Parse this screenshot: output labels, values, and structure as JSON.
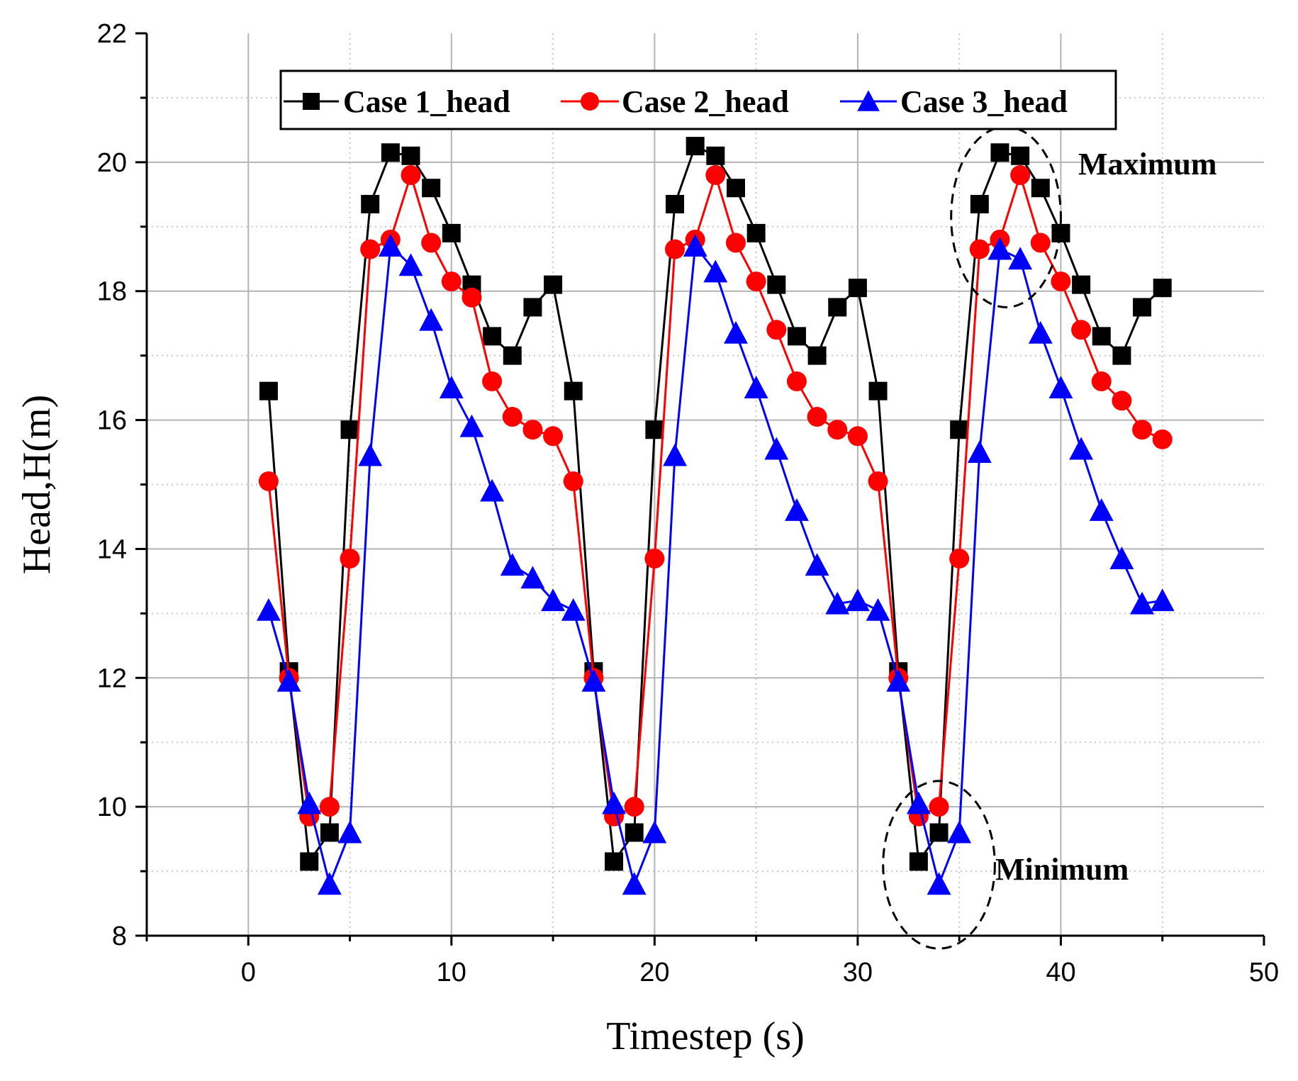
{
  "chart_data": {
    "type": "line",
    "title": "",
    "xlabel": "Timestep (s)",
    "ylabel": "Head,H(m)",
    "xlim": [
      -5,
      50
    ],
    "ylim": [
      8,
      22
    ],
    "xticks": [
      0,
      10,
      20,
      30,
      40,
      50
    ],
    "yticks": [
      8,
      10,
      12,
      14,
      16,
      18,
      20,
      22
    ],
    "grid": true,
    "legend_position": "top",
    "x": [
      1,
      2,
      3,
      4,
      5,
      6,
      7,
      8,
      9,
      10,
      11,
      12,
      13,
      14,
      15,
      16,
      17,
      18,
      19,
      20,
      21,
      22,
      23,
      24,
      25,
      26,
      27,
      28,
      29,
      30,
      31,
      32,
      33,
      34,
      35,
      36,
      37,
      38,
      39,
      40,
      41,
      42,
      43,
      44,
      45
    ],
    "series": [
      {
        "name": "Case 1_head",
        "color": "#000000",
        "marker": "square",
        "values": [
          16.45,
          12.1,
          9.15,
          9.6,
          15.85,
          19.35,
          20.15,
          20.1,
          19.6,
          18.9,
          18.1,
          17.3,
          17.0,
          17.75,
          18.1,
          16.45,
          12.1,
          9.15,
          9.6,
          15.85,
          19.35,
          20.25,
          20.1,
          19.6,
          18.9,
          18.1,
          17.3,
          17.0,
          17.75,
          18.05,
          16.45,
          12.1,
          9.15,
          9.6,
          15.85,
          19.35,
          20.15,
          20.1,
          19.6,
          18.9,
          18.1,
          17.3,
          17.0,
          17.75,
          18.05
        ]
      },
      {
        "name": "Case 2_head",
        "color": "#ff0000",
        "marker": "circle",
        "values": [
          15.05,
          12.0,
          9.85,
          10.0,
          13.85,
          18.65,
          18.8,
          19.8,
          18.75,
          18.15,
          17.9,
          16.6,
          16.05,
          15.85,
          15.75,
          15.05,
          12.0,
          9.85,
          10.0,
          13.85,
          18.65,
          18.8,
          19.8,
          18.75,
          18.15,
          17.4,
          16.6,
          16.05,
          15.85,
          15.75,
          15.05,
          12.0,
          9.85,
          10.0,
          13.85,
          18.65,
          18.8,
          19.8,
          18.75,
          18.15,
          17.4,
          16.6,
          16.3,
          15.85,
          15.7
        ]
      },
      {
        "name": "Case 3_head",
        "color": "#0000ff",
        "marker": "triangle",
        "values": [
          13.05,
          11.95,
          10.05,
          8.8,
          9.6,
          15.45,
          18.7,
          18.4,
          17.55,
          16.5,
          15.9,
          14.9,
          13.75,
          13.55,
          13.2,
          13.05,
          11.95,
          10.05,
          8.8,
          9.6,
          15.45,
          18.7,
          18.3,
          17.35,
          16.5,
          15.55,
          14.6,
          13.75,
          13.15,
          13.2,
          13.05,
          11.95,
          10.05,
          8.8,
          9.6,
          15.5,
          18.65,
          18.5,
          17.35,
          16.5,
          15.55,
          14.6,
          13.85,
          13.15,
          13.2
        ]
      }
    ],
    "annotations": [
      {
        "label": "Maximum",
        "ellipse_center": [
          37.3,
          19.15
        ],
        "ellipse_radii": [
          2.7,
          1.4
        ]
      },
      {
        "label": "Minimum",
        "ellipse_center": [
          34.0,
          9.1
        ],
        "ellipse_radii": [
          2.75,
          1.3
        ]
      }
    ]
  }
}
